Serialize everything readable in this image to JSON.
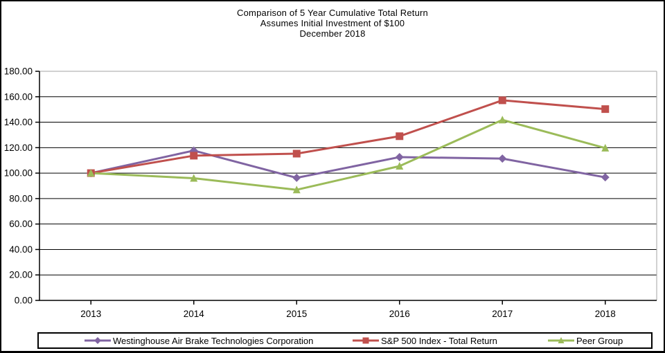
{
  "title": {
    "line1": "Comparison of 5 Year Cumulative Total Return",
    "line2": "Assumes Initial Investment of $100",
    "line3": "December 2018"
  },
  "chart_data": {
    "type": "line",
    "title": "Comparison of 5 Year Cumulative Total Return",
    "subtitle": "Assumes Initial Investment of $100",
    "period_label": "December 2018",
    "categories": [
      "2013",
      "2014",
      "2015",
      "2016",
      "2017",
      "2018"
    ],
    "series": [
      {
        "name": "Westinghouse Air Brake Technologies Corporation",
        "color": "#8064A2",
        "marker": "diamond",
        "values": [
          100.0,
          117.7,
          96.3,
          112.6,
          111.4,
          96.7
        ]
      },
      {
        "name": "S&P 500 Index - Total Return",
        "color": "#C0504D",
        "marker": "square",
        "values": [
          100.0,
          113.7,
          115.3,
          129.0,
          157.2,
          150.3
        ]
      },
      {
        "name": "Peer Group",
        "color": "#9BBB59",
        "marker": "triangle",
        "values": [
          100.0,
          96.0,
          86.9,
          105.5,
          141.8,
          119.7
        ]
      }
    ],
    "ylim": [
      0,
      180
    ],
    "y_ticks": [
      "0.00",
      "20.00",
      "40.00",
      "60.00",
      "80.00",
      "100.00",
      "120.00",
      "140.00",
      "160.00",
      "180.00"
    ],
    "xlabel": "",
    "ylabel": "",
    "grid": "horizontal",
    "legend_position": "bottom",
    "axis_color": "#000000",
    "grid_color": "#000000",
    "plot_border_color": "#A3A3A3"
  }
}
